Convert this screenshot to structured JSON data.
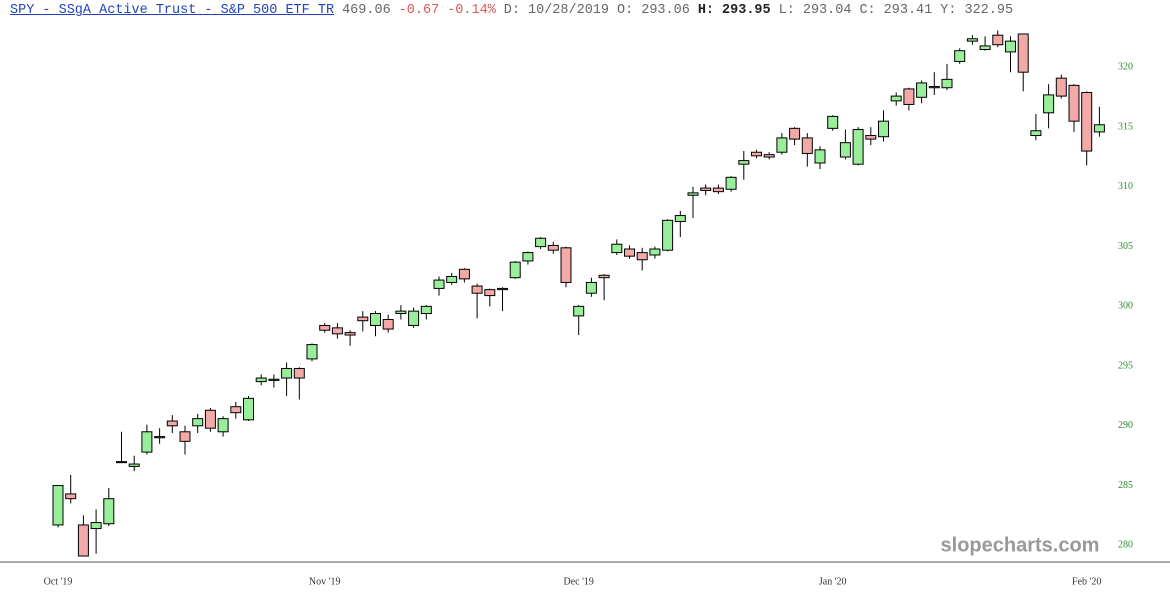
{
  "header": {
    "title": "SPY - SSgA Active Trust - S&P 500 ETF TR",
    "price": "469.06",
    "change": "-0.67",
    "change_pct": "-0.14%",
    "stats": [
      {
        "label": "D:",
        "value": "10/28/2019"
      },
      {
        "label": "O:",
        "value": "293.06"
      },
      {
        "label": "H:",
        "value": "293.95"
      },
      {
        "label": "L:",
        "value": "293.04"
      },
      {
        "label": "C:",
        "value": "293.41"
      },
      {
        "label": "Y:",
        "value": "322.95"
      }
    ]
  },
  "watermark": "slopecharts.com",
  "chart_data": {
    "type": "candlestick",
    "categories": [
      "Oct '19",
      null,
      null,
      null,
      null,
      null,
      null,
      null,
      null,
      null,
      null,
      null,
      null,
      null,
      null,
      null,
      null,
      null,
      null,
      null,
      null,
      "Nov '19",
      null,
      null,
      null,
      null,
      null,
      null,
      null,
      null,
      null,
      null,
      null,
      null,
      null,
      null,
      null,
      null,
      null,
      null,
      null,
      "Dec '19",
      null,
      null,
      null,
      null,
      null,
      null,
      null,
      null,
      null,
      null,
      null,
      null,
      null,
      null,
      null,
      null,
      null,
      null,
      null,
      "Jan '20",
      null,
      null,
      null,
      null,
      null,
      null,
      null,
      null,
      null,
      null,
      null,
      null,
      null,
      null,
      null,
      null,
      null,
      null,
      null,
      "Feb '20",
      null
    ],
    "open": [
      281.7,
      284.3,
      281.7,
      281.4,
      281.8,
      287.0,
      286.6,
      287.8,
      289.0,
      290.4,
      289.5,
      290.0,
      291.3,
      289.5,
      291.6,
      290.5,
      293.7,
      293.8,
      294.0,
      294.8,
      295.6,
      298.4,
      298.2,
      297.8,
      299.1,
      298.4,
      298.9,
      299.4,
      298.4,
      299.4,
      301.5,
      302.0,
      303.1,
      301.7,
      301.4,
      301.4,
      302.4,
      303.8,
      305.0,
      305.1,
      304.9,
      299.2,
      301.1,
      302.6,
      304.5,
      304.8,
      304.5,
      304.3,
      304.7,
      307.1,
      309.3,
      309.9,
      309.9,
      309.8,
      311.9,
      312.9,
      312.7,
      312.9,
      314.9,
      314.1,
      312.0,
      314.9,
      312.5,
      311.9,
      314.3,
      314.2,
      317.2,
      318.2,
      317.5,
      318.3,
      318.3,
      320.5,
      322.2,
      321.5,
      322.7,
      321.3,
      322.8,
      314.3,
      316.2,
      319.1,
      318.5,
      317.9,
      314.6
    ],
    "high": [
      285.0,
      285.9,
      282.5,
      283.0,
      284.8,
      289.5,
      287.5,
      290.1,
      289.8,
      290.9,
      290.0,
      291.0,
      291.5,
      290.8,
      292.0,
      292.5,
      294.3,
      294.3,
      295.3,
      294.9,
      296.9,
      298.6,
      298.6,
      298.0,
      299.6,
      299.6,
      299.3,
      300.1,
      299.9,
      300.1,
      302.5,
      302.8,
      303.2,
      301.9,
      301.5,
      301.6,
      303.8,
      304.6,
      305.8,
      305.4,
      305.0,
      300.1,
      302.4,
      302.7,
      305.6,
      305.1,
      304.9,
      305.0,
      307.3,
      308.0,
      310.0,
      310.2,
      310.2,
      310.9,
      313.0,
      313.1,
      312.9,
      314.5,
      315.0,
      314.5,
      313.4,
      316.0,
      314.8,
      315.0,
      315.0,
      316.4,
      317.9,
      318.3,
      318.9,
      319.6,
      320.3,
      321.6,
      322.7,
      322.6,
      323.1,
      322.6,
      322.8,
      316.1,
      318.6,
      319.4,
      318.6,
      318.0,
      316.7
    ],
    "low": [
      281.5,
      283.5,
      279.1,
      279.3,
      281.6,
      286.9,
      286.2,
      287.6,
      288.5,
      289.4,
      287.6,
      289.4,
      289.5,
      289.1,
      290.6,
      290.4,
      293.4,
      293.2,
      292.5,
      292.2,
      295.4,
      297.8,
      297.3,
      296.7,
      297.9,
      297.5,
      297.8,
      298.9,
      298.2,
      298.9,
      300.9,
      301.8,
      302.0,
      299.0,
      300.0,
      299.6,
      302.3,
      303.5,
      304.8,
      304.4,
      301.6,
      297.6,
      300.8,
      300.5,
      304.3,
      304.0,
      303.0,
      304.0,
      304.6,
      305.8,
      307.4,
      309.3,
      309.4,
      309.6,
      310.6,
      312.4,
      312.3,
      312.7,
      313.5,
      311.7,
      311.5,
      314.7,
      312.3,
      311.8,
      313.5,
      313.8,
      316.8,
      316.4,
      317.0,
      317.7,
      318.1,
      320.3,
      321.9,
      321.4,
      321.7,
      319.6,
      318.0,
      313.9,
      314.9,
      317.4,
      314.6,
      311.8,
      314.2
    ],
    "close": [
      285.0,
      283.9,
      279.1,
      281.9,
      283.9,
      287.0,
      286.8,
      289.5,
      289.1,
      290.0,
      288.7,
      290.6,
      289.8,
      290.6,
      291.1,
      292.3,
      294.0,
      293.9,
      294.8,
      294.0,
      296.8,
      298.0,
      297.7,
      297.6,
      298.8,
      299.4,
      298.1,
      299.6,
      299.6,
      300.0,
      302.2,
      302.5,
      302.3,
      301.1,
      300.9,
      301.5,
      303.7,
      304.5,
      305.7,
      304.7,
      302.0,
      300.0,
      302.0,
      302.4,
      305.2,
      304.2,
      303.9,
      304.8,
      307.2,
      307.6,
      309.5,
      309.7,
      309.6,
      310.8,
      312.2,
      312.6,
      312.5,
      314.1,
      314.0,
      312.8,
      313.1,
      315.9,
      313.7,
      314.8,
      314.0,
      315.5,
      317.6,
      316.9,
      318.7,
      318.4,
      319.0,
      321.4,
      322.4,
      321.8,
      321.9,
      322.2,
      319.6,
      314.7,
      317.7,
      317.6,
      315.5,
      313.0,
      315.2
    ],
    "up_color": "#99ee99",
    "down_color": "#f4a9a9",
    "ylim": [
      278.6,
      323.3
    ],
    "yticks": [
      280,
      285,
      290,
      295,
      300,
      305,
      310,
      315,
      320
    ]
  }
}
